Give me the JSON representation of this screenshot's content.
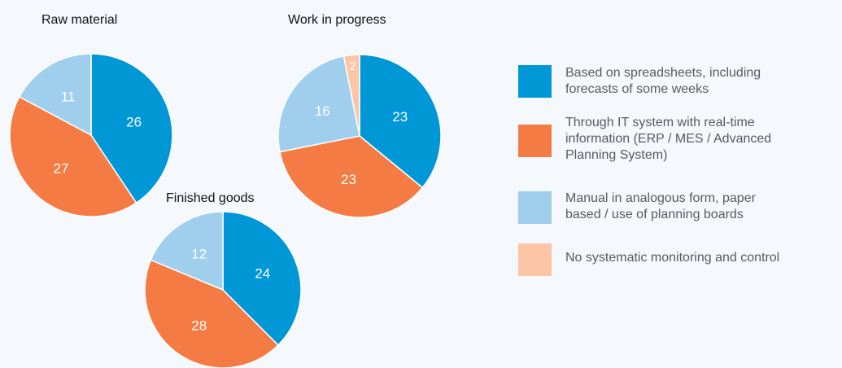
{
  "colors": {
    "spreadsheets": "#0097d7",
    "it_system": "#f47c44",
    "manual": "#a0cfee",
    "none": "#fcc5a6"
  },
  "legend": [
    {
      "key": "spreadsheets",
      "label": "Based on spreadsheets, including\nforecasts of some weeks"
    },
    {
      "key": "it_system",
      "label": "Through IT system with real-time\ninformation (ERP / MES / Advanced\nPlanning System)"
    },
    {
      "key": "manual",
      "label": "Manual in analogous form, paper\nbased / use of planning boards"
    },
    {
      "key": "none",
      "label": "No systematic monitoring and control"
    }
  ],
  "chart_data": [
    {
      "type": "pie",
      "title": "Raw material",
      "categories": [
        "Based on spreadsheets, including forecasts of some weeks",
        "Through IT system with real-time information (ERP / MES / Advanced Planning System)",
        "Manual in analogous form, paper based / use of planning boards",
        "No systematic monitoring and control"
      ],
      "values": [
        26,
        27,
        11,
        0
      ],
      "data_labels": [
        "26",
        "27",
        "11",
        ""
      ]
    },
    {
      "type": "pie",
      "title": "Work in progress",
      "categories": [
        "Based on spreadsheets, including forecasts of some weeks",
        "Through IT system with real-time information (ERP / MES / Advanced Planning System)",
        "Manual in analogous form, paper based / use of planning boards",
        "No systematic monitoring and control"
      ],
      "values": [
        23,
        23,
        16,
        2
      ],
      "data_labels": [
        "23",
        "23",
        "16",
        "2"
      ]
    },
    {
      "type": "pie",
      "title": "Finished goods",
      "categories": [
        "Based on spreadsheets, including forecasts of some weeks",
        "Through IT system with real-time information (ERP / MES / Advanced Planning System)",
        "Manual in analogous form, paper based / use of planning boards",
        "No systematic monitoring and control"
      ],
      "values": [
        24,
        28,
        12,
        0
      ],
      "data_labels": [
        "24",
        "28",
        "12",
        ""
      ]
    }
  ]
}
